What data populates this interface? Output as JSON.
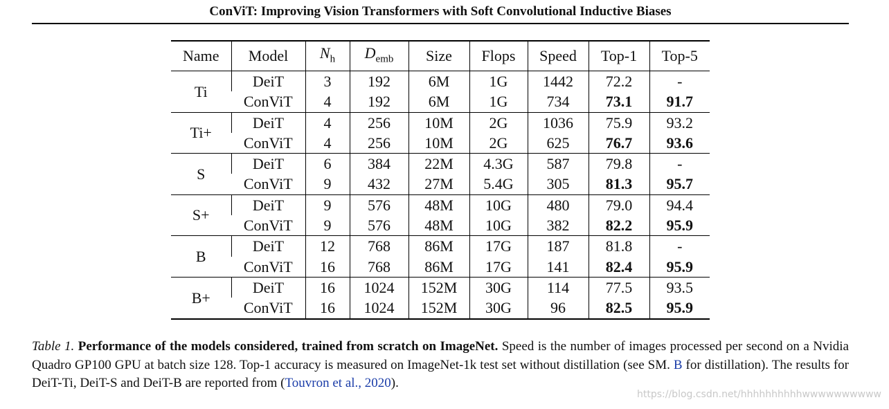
{
  "header": {
    "title": "ConViT: Improving Vision Transformers with Soft Convolutional Inductive Biases"
  },
  "table": {
    "columns": [
      {
        "text": "Name"
      },
      {
        "text": "Model"
      },
      {
        "text": "N",
        "sub": "h"
      },
      {
        "text": "D",
        "sub": "emb"
      },
      {
        "text": "Size"
      },
      {
        "text": "Flops"
      },
      {
        "text": "Speed"
      },
      {
        "text": "Top-1"
      },
      {
        "text": "Top-5"
      }
    ],
    "groups": [
      {
        "name": "Ti",
        "rows": [
          {
            "cells": [
              "DeiT",
              "3",
              "192",
              "6M",
              "1G",
              "1442",
              "72.2",
              "-"
            ]
          },
          {
            "cells": [
              "ConViT",
              "4",
              "192",
              "6M",
              "1G",
              "734",
              "73.1",
              "91.7"
            ],
            "bold": [
              6,
              7
            ]
          }
        ]
      },
      {
        "name": "Ti+",
        "rows": [
          {
            "cells": [
              "DeiT",
              "4",
              "256",
              "10M",
              "2G",
              "1036",
              "75.9",
              "93.2"
            ]
          },
          {
            "cells": [
              "ConViT",
              "4",
              "256",
              "10M",
              "2G",
              "625",
              "76.7",
              "93.6"
            ],
            "bold": [
              6,
              7
            ]
          }
        ]
      },
      {
        "name": "S",
        "rows": [
          {
            "cells": [
              "DeiT",
              "6",
              "384",
              "22M",
              "4.3G",
              "587",
              "79.8",
              "-"
            ]
          },
          {
            "cells": [
              "ConViT",
              "9",
              "432",
              "27M",
              "5.4G",
              "305",
              "81.3",
              "95.7"
            ],
            "bold": [
              6,
              7
            ]
          }
        ]
      },
      {
        "name": "S+",
        "rows": [
          {
            "cells": [
              "DeiT",
              "9",
              "576",
              "48M",
              "10G",
              "480",
              "79.0",
              "94.4"
            ]
          },
          {
            "cells": [
              "ConViT",
              "9",
              "576",
              "48M",
              "10G",
              "382",
              "82.2",
              "95.9"
            ],
            "bold": [
              6,
              7
            ]
          }
        ]
      },
      {
        "name": "B",
        "rows": [
          {
            "cells": [
              "DeiT",
              "12",
              "768",
              "86M",
              "17G",
              "187",
              "81.8",
              "-"
            ]
          },
          {
            "cells": [
              "ConViT",
              "16",
              "768",
              "86M",
              "17G",
              "141",
              "82.4",
              "95.9"
            ],
            "bold": [
              6,
              7
            ]
          }
        ]
      },
      {
        "name": "B+",
        "rows": [
          {
            "cells": [
              "DeiT",
              "16",
              "1024",
              "152M",
              "30G",
              "114",
              "77.5",
              "93.5"
            ]
          },
          {
            "cells": [
              "ConViT",
              "16",
              "1024",
              "152M",
              "30G",
              "96",
              "82.5",
              "95.9"
            ],
            "bold": [
              6,
              7
            ]
          }
        ]
      }
    ]
  },
  "caption": {
    "label": "Table 1.",
    "bold": " Performance of the models considered, trained from scratch on ImageNet.",
    "text1": " Speed is the number of images processed per second on a Nvidia Quadro GP100 GPU at batch size 128. Top-1 accuracy is measured on ImageNet-1k test set without distillation (see SM. ",
    "link1": "B",
    "text2": " for distillation). The results for DeiT-Ti, DeiT-S and DeiT-B are reported from (",
    "link2": "Touvron et al., 2020",
    "text3": ")."
  },
  "watermark": "https://blog.csdn.net/hhhhhhhhhhwwwwwwwwww"
}
